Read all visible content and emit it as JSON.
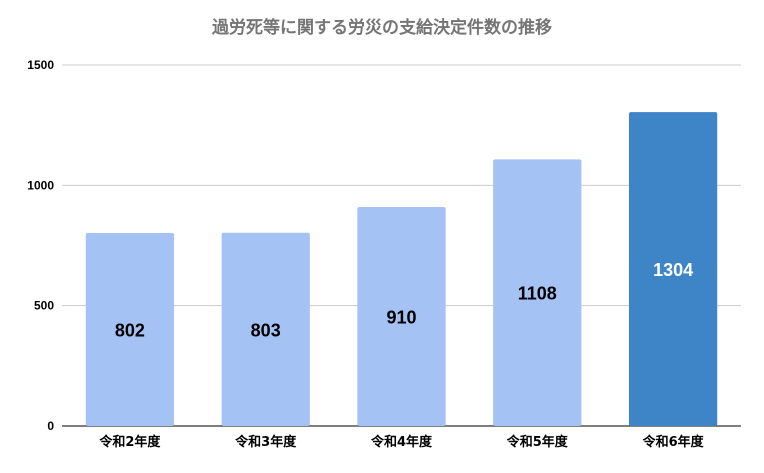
{
  "chart_data": {
    "type": "bar",
    "title": "過労死等に関する労災の支給決定件数の推移",
    "categories": [
      "令和2年度",
      "令和3年度",
      "令和4年度",
      "令和5年度",
      "令和6年度"
    ],
    "values": [
      802,
      803,
      910,
      1108,
      1304
    ],
    "data_labels": [
      "802",
      "803",
      "910",
      "1108",
      "1304"
    ],
    "yticks": [
      "0",
      "500",
      "1000",
      "1500"
    ],
    "ylim": [
      0,
      1500
    ],
    "xlabel": "",
    "ylabel": "",
    "grid": true,
    "legend": "none",
    "colors": {
      "bar": "#a4c2f4",
      "highlight_bar": "#3d85c6",
      "label_on_bar": "#000000",
      "label_on_highlight": "#ffffff",
      "grid": "#cccccc",
      "axis": "#333333"
    },
    "highlight_index": 4
  }
}
